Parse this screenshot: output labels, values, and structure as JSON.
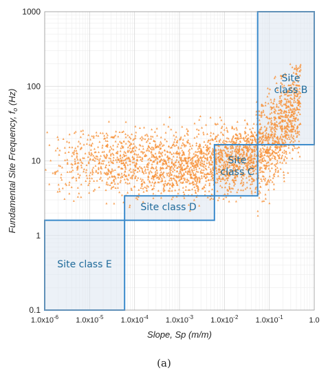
{
  "caption": "(a)",
  "chart_data": {
    "type": "scatter",
    "title": "",
    "xlabel": "Slope, Sp (m/m)",
    "ylabel_main": "Fundamental Site Frequency, f",
    "ylabel_sub": "o",
    "ylabel_unit": " (Hz)",
    "x_scale": "log",
    "y_scale": "log",
    "xlim": [
      1e-06,
      1
    ],
    "ylim": [
      0.1,
      1000
    ],
    "grid": true,
    "x_ticks": [
      {
        "value": 1e-06,
        "mant": "1.0x10",
        "exp": "-6"
      },
      {
        "value": 1e-05,
        "mant": "1.0x10",
        "exp": "-5"
      },
      {
        "value": 0.0001,
        "mant": "1.0x10",
        "exp": "-4"
      },
      {
        "value": 0.001,
        "mant": "1.0x10",
        "exp": "-3"
      },
      {
        "value": 0.01,
        "mant": "1.0x10",
        "exp": "-2"
      },
      {
        "value": 0.1,
        "mant": "1.0x10",
        "exp": "-1"
      },
      {
        "value": 1,
        "mant": "1.0",
        "exp": ""
      }
    ],
    "y_ticks": [
      {
        "value": 0.1,
        "label": "0.1"
      },
      {
        "value": 1,
        "label": "1"
      },
      {
        "value": 10,
        "label": "10"
      },
      {
        "value": 100,
        "label": "100"
      },
      {
        "value": 1000,
        "label": "1000"
      }
    ],
    "point_color": "#F7923A",
    "box_stroke": "#3A8ACB",
    "box_fill": "#DCE6F1",
    "site_classes": [
      {
        "name": "Site class E",
        "lines": [
          "Site class E"
        ],
        "x_range": [
          1e-06,
          6e-05
        ],
        "y_range": [
          0.1,
          1.6
        ],
        "shaded": true
      },
      {
        "name": "Site class D",
        "lines": [
          "Site class D"
        ],
        "x_range": [
          6e-05,
          0.006
        ],
        "y_range": [
          1.6,
          3.4
        ],
        "shaded": true
      },
      {
        "name": "Site class C",
        "lines": [
          "Site",
          "class C"
        ],
        "x_range": [
          0.006,
          0.055
        ],
        "y_range": [
          3.4,
          16.5
        ],
        "shaded": true
      },
      {
        "name": "Site class B",
        "lines": [
          "Site",
          "class B"
        ],
        "x_range": [
          0.055,
          1
        ],
        "y_range": [
          16.5,
          1000
        ],
        "shaded": true
      }
    ],
    "scatter_trend": {
      "description_free_points": true,
      "x_min": 1e-06,
      "x_max": 0.5,
      "median_frequency": [
        {
          "x": 1e-06,
          "y": 10
        },
        {
          "x": 0.0001,
          "y": 9
        },
        {
          "x": 0.001,
          "y": 9
        },
        {
          "x": 0.01,
          "y": 10
        },
        {
          "x": 0.05,
          "y": 12
        },
        {
          "x": 0.1,
          "y": 18
        },
        {
          "x": 0.3,
          "y": 40
        },
        {
          "x": 0.5,
          "y": 60
        }
      ],
      "max_frequency": 200,
      "min_frequency": 1.5
    }
  }
}
